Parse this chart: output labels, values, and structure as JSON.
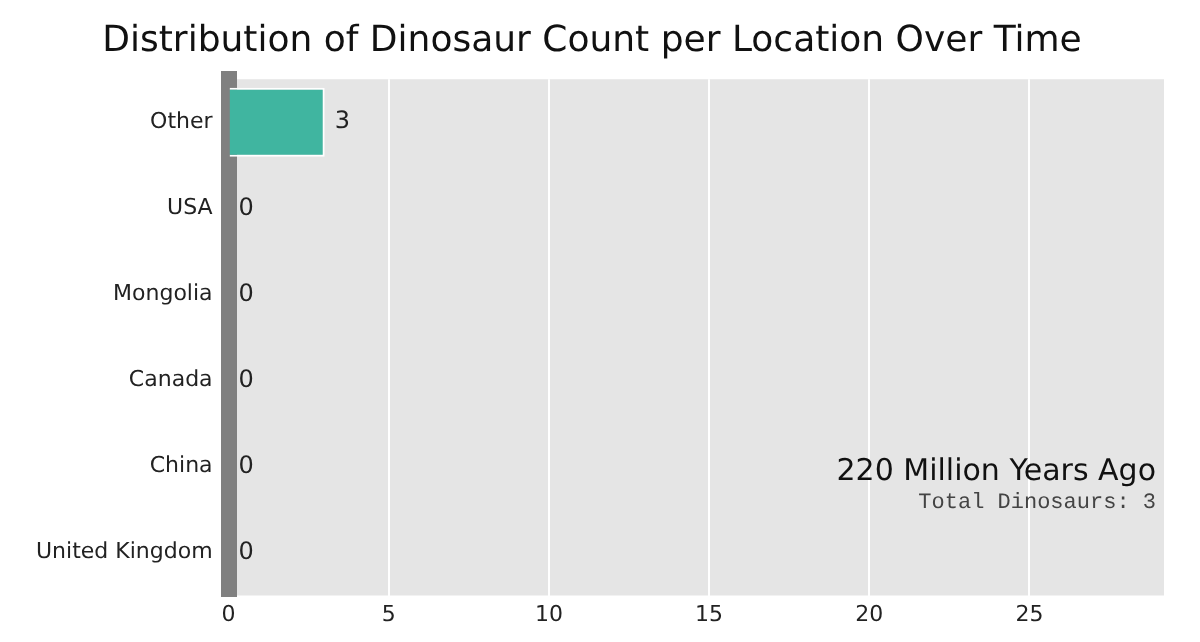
{
  "chart_data": {
    "type": "bar",
    "title": "Distribution of Dinosaur Count per Location Over Time",
    "orientation": "horizontal",
    "categories": [
      "Other",
      "USA",
      "Mongolia",
      "Canada",
      "China",
      "United Kingdom"
    ],
    "values": [
      3,
      0,
      0,
      0,
      0,
      0
    ],
    "color": "#40b5a0",
    "xlim": [
      0,
      29.2
    ],
    "xticks": [
      0,
      5,
      10,
      15,
      20,
      25
    ],
    "grid": "x",
    "data_labels": true,
    "annotations": [
      "220 Million Years Ago",
      "Total Dinosaurs: 3"
    ]
  }
}
